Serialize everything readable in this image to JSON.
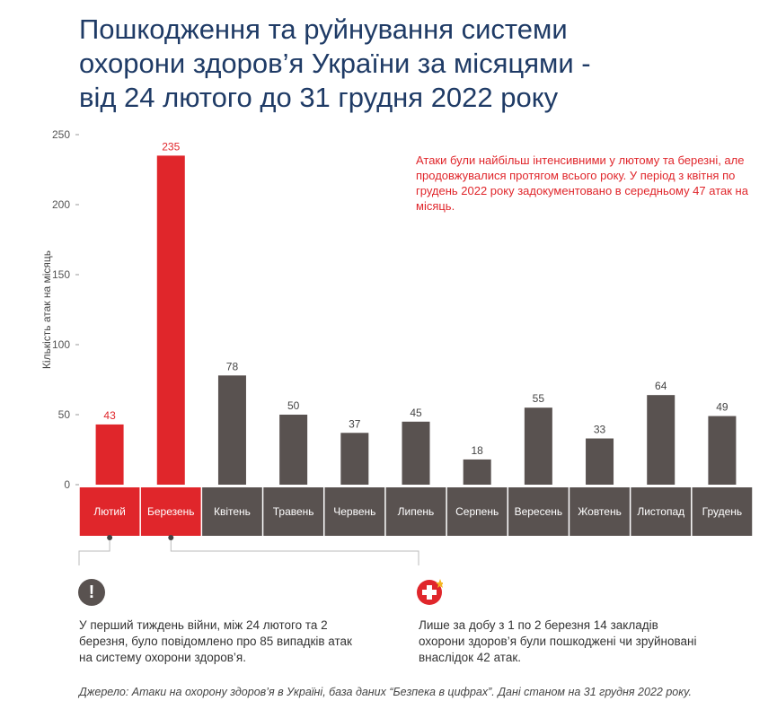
{
  "title": {
    "line1": "Пошкодження та руйнування системи",
    "line2": "охорони здоров’я України за місяцями -",
    "line3": "від 24 лютого до 31 грудня 2022 року"
  },
  "annotation": "Атаки були найбільш інтенсивними у лютому та березні, але продовжувалися протягом всього року. У період з квітня по грудень 2022 року задокументовано в середньому 47 атак на місяць.",
  "notes": {
    "first_week": "У перший тиждень війни, між 24 лютого та 2 березня, було повідомлено про 85 випадків атак на систему охорони здоров’я.",
    "one_day": "Лише за добу з 1 по 2 березня 14 закладів охорони здоров’я були пошкоджені чи зруйновані внаслідок 42 атак."
  },
  "source": "Джерело: Атаки на охорону здоров’я в Україні, база даних “Безпека в цифрах”. Дані станом на 31 грудня 2022 року.",
  "icons": {
    "note1": "exclamation-icon",
    "note2": "medical-cross-icon"
  },
  "colors": {
    "highlight": "#e0262b",
    "normal": "#595250",
    "title": "#1f3b66"
  },
  "chart_data": {
    "type": "bar",
    "ylabel": "Кількість атак на місяць",
    "ylim": [
      0,
      250
    ],
    "yticks": [
      0,
      50,
      100,
      150,
      200,
      250
    ],
    "grid": false,
    "categories": [
      "Лютий",
      "Березень",
      "Квітень",
      "Травень",
      "Червень",
      "Липень",
      "Серпень",
      "Вересень",
      "Жовтень",
      "Листопад",
      "Грудень"
    ],
    "values": [
      43,
      235,
      78,
      50,
      37,
      45,
      18,
      55,
      33,
      64,
      49
    ],
    "highlighted": [
      "Лютий",
      "Березень"
    ]
  }
}
